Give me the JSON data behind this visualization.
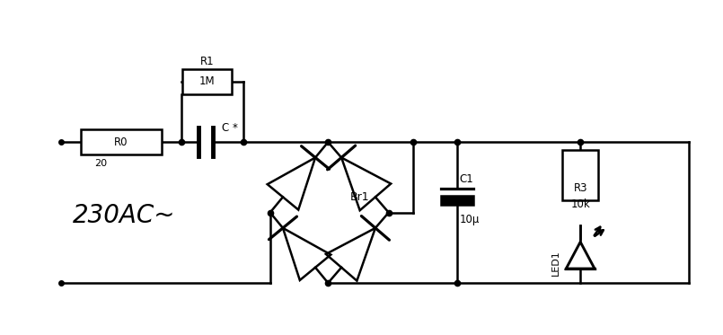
{
  "bg_color": "#ffffff",
  "line_color": "#000000",
  "line_width": 1.8,
  "dot_size": 6,
  "fig_width": 8.05,
  "fig_height": 3.73,
  "label_230": "230AC~",
  "label_R0": "R0",
  "label_20": "20",
  "label_R1": "R1",
  "label_1M": "1M",
  "label_C": "C *",
  "label_Br1": "Br1",
  "label_C1": "C1",
  "label_10u": "10μ",
  "label_R3": "R3",
  "label_10k": "10k",
  "label_LED1": "LED1"
}
